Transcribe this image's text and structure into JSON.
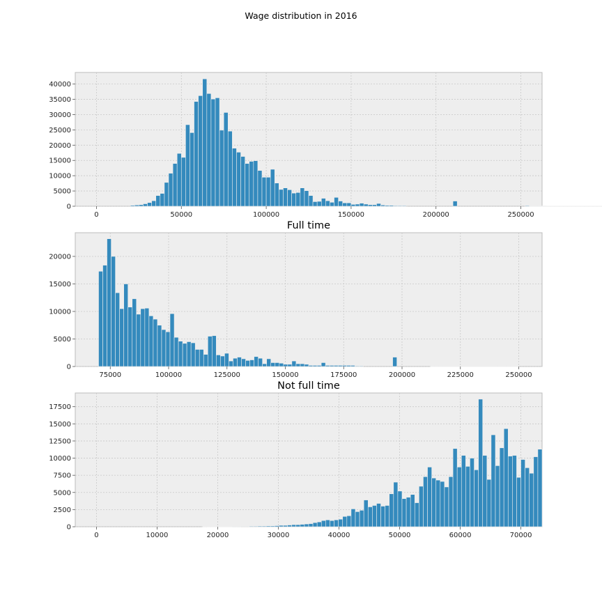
{
  "figure": {
    "suptitle": "Wage distribution in 2016"
  },
  "chart_data": [
    {
      "type": "bar",
      "title": "",
      "grid": true,
      "color": "#348abd",
      "xlim": [
        -12500,
        262500
      ],
      "ylim": [
        0,
        43800
      ],
      "xticks": [
        0,
        50000,
        100000,
        150000,
        200000,
        250000
      ],
      "yticks": [
        0,
        5000,
        10000,
        15000,
        20000,
        25000,
        30000,
        35000,
        40000
      ],
      "x_start": 0,
      "bin_width": 2500,
      "values": [
        0,
        0,
        0,
        0,
        0,
        0,
        0,
        0,
        300,
        400,
        500,
        800,
        1200,
        1800,
        3500,
        4200,
        7800,
        10800,
        14000,
        17300,
        16000,
        26700,
        24100,
        34300,
        36200,
        41700,
        36900,
        35100,
        35500,
        24900,
        30700,
        24600,
        19000,
        17700,
        16300,
        14000,
        14700,
        14900,
        11700,
        9500,
        9500,
        12100,
        7600,
        5500,
        6000,
        5400,
        4300,
        4500,
        6000,
        5100,
        3500,
        1500,
        1600,
        2600,
        1800,
        1300,
        2900,
        1700,
        1100,
        1100,
        600,
        700,
        1000,
        700,
        500,
        500,
        900,
        400,
        300,
        300,
        200,
        200,
        200,
        0,
        0,
        0,
        0,
        0,
        0,
        0,
        0,
        0,
        0,
        0,
        1700,
        0,
        0,
        0,
        0,
        0,
        0,
        0,
        0,
        0,
        0,
        0,
        0,
        0,
        0,
        0,
        0,
        200,
        100,
        100,
        100,
        100,
        50,
        50,
        50,
        50,
        50,
        50,
        50,
        50,
        50,
        50,
        50,
        50,
        50,
        50,
        50,
        50,
        50,
        50,
        50,
        50,
        50,
        50,
        50,
        50,
        50,
        50,
        50,
        50,
        50,
        50,
        50,
        50,
        50,
        50,
        50,
        50,
        50,
        50
      ]
    },
    {
      "type": "bar",
      "title": "Full time",
      "grid": true,
      "color": "#348abd",
      "xlim": [
        60000,
        260000
      ],
      "ylim": [
        0,
        24300
      ],
      "xticks": [
        75000,
        100000,
        125000,
        150000,
        175000,
        200000,
        225000,
        250000
      ],
      "yticks": [
        0,
        5000,
        10000,
        15000,
        20000
      ],
      "x_start": 70000,
      "bin_width": 1800,
      "values": [
        17300,
        18400,
        23200,
        20000,
        13400,
        10500,
        15000,
        10800,
        12300,
        9500,
        10500,
        10600,
        9200,
        8600,
        7500,
        6700,
        6300,
        9600,
        5300,
        4600,
        4200,
        4500,
        4300,
        3100,
        3100,
        2200,
        5500,
        5600,
        2100,
        1900,
        2400,
        1000,
        1500,
        1700,
        1400,
        1100,
        1200,
        1800,
        1500,
        500,
        1400,
        700,
        700,
        600,
        400,
        400,
        1000,
        500,
        500,
        400,
        200,
        200,
        200,
        700,
        200,
        200,
        200,
        200,
        200,
        200,
        200,
        100,
        100,
        0,
        0,
        0,
        0,
        0,
        0,
        0,
        1700,
        0,
        0,
        0,
        0,
        0,
        0,
        0,
        0,
        50,
        50,
        50,
        50,
        50,
        50,
        50,
        50,
        50,
        50,
        50,
        50,
        50,
        50,
        50,
        50,
        50,
        50,
        50,
        50,
        50
      ]
    },
    {
      "type": "bar",
      "title": "Not full time",
      "grid": true,
      "color": "#348abd",
      "xlim": [
        -3500,
        73500
      ],
      "ylim": [
        0,
        19500
      ],
      "xticks": [
        0,
        10000,
        20000,
        30000,
        40000,
        50000,
        60000,
        70000
      ],
      "yticks": [
        0,
        2500,
        5000,
        7500,
        10000,
        12500,
        15000,
        17500
      ],
      "x_start": 0,
      "bin_width": 700,
      "values": [
        0,
        0,
        0,
        0,
        0,
        0,
        0,
        0,
        0,
        0,
        0,
        0,
        0,
        0,
        0,
        0,
        0,
        0,
        0,
        0,
        0,
        0,
        0,
        0,
        0,
        20,
        30,
        30,
        30,
        40,
        40,
        40,
        50,
        50,
        60,
        60,
        80,
        80,
        100,
        100,
        120,
        120,
        150,
        200,
        200,
        250,
        300,
        300,
        350,
        400,
        450,
        600,
        700,
        900,
        1000,
        900,
        1000,
        1100,
        1500,
        1600,
        2600,
        2200,
        2400,
        3900,
        2900,
        3100,
        3400,
        3000,
        3100,
        4800,
        6500,
        5200,
        4100,
        4300,
        4700,
        3500,
        5900,
        7300,
        8700,
        7100,
        6800,
        6600,
        5800,
        7300,
        11400,
        8700,
        10400,
        8800,
        10000,
        8300,
        18600,
        10400,
        6900,
        13400,
        8900,
        11500,
        14300,
        10300,
        10400,
        7200,
        9800,
        8600,
        7800,
        10200,
        11300
      ]
    }
  ]
}
